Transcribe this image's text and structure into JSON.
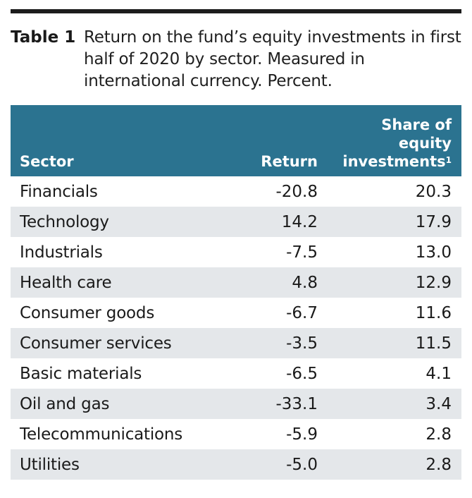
{
  "caption": {
    "label": "Table 1",
    "text": "Return on the fund’s equity investments in first half of 2020 by sector. Measured in international currency. Percent."
  },
  "table": {
    "header": {
      "sector": "Sector",
      "return": "Return",
      "share_line1": "Share of",
      "share_line2": "equity",
      "share_line3": "investments",
      "share_footnote": "1"
    },
    "rows": [
      {
        "sector": "Financials",
        "return": "-20.8",
        "share": "20.3"
      },
      {
        "sector": "Technology",
        "return": "14.2",
        "share": "17.9"
      },
      {
        "sector": "Industrials",
        "return": "-7.5",
        "share": "13.0"
      },
      {
        "sector": "Health care",
        "return": "4.8",
        "share": "12.9"
      },
      {
        "sector": "Consumer goods",
        "return": "-6.7",
        "share": "11.6"
      },
      {
        "sector": "Consumer services",
        "return": "-3.5",
        "share": "11.5"
      },
      {
        "sector": "Basic materials",
        "return": "-6.5",
        "share": "4.1"
      },
      {
        "sector": "Oil and gas",
        "return": "-33.1",
        "share": "3.4"
      },
      {
        "sector": "Telecommunications",
        "return": "-5.9",
        "share": "2.8"
      },
      {
        "sector": "Utilities",
        "return": "-5.0",
        "share": "2.8"
      }
    ]
  },
  "colors": {
    "header_bg": "#2b7390",
    "row_shade": "#e4e7ea",
    "rule": "#1c1c1c"
  }
}
